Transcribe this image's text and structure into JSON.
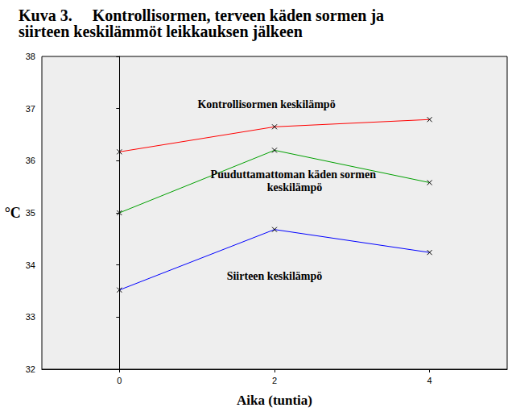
{
  "chart_data": {
    "type": "line",
    "title": "Kuva 3.     Kontrollisormen, terveen käden sormen ja\nsiirteen keskilämmöt leikkauksen jälkeen",
    "x_label": "Aika (tuntia)",
    "y_label": "°C",
    "x": [
      0,
      2,
      4
    ],
    "series": [
      {
        "name": "Kontrollisormen keskilämpö",
        "color": "#ff0000",
        "values": [
          36.17,
          36.65,
          36.79
        ]
      },
      {
        "name": "Puuduttamattoman käden sormen keskilämpö",
        "color": "#00a000",
        "values": [
          35.0,
          36.2,
          35.58
        ]
      },
      {
        "name": "Siirteen keskilämpö",
        "color": "#0000ff",
        "values": [
          33.52,
          34.68,
          34.24
        ]
      }
    ],
    "xlim": [
      -1,
      5
    ],
    "xticks": [
      0,
      2,
      4
    ],
    "ylim": [
      32,
      38
    ],
    "yticks": [
      32,
      33,
      34,
      35,
      36,
      37,
      38
    ],
    "grid": false,
    "marker": "x"
  }
}
